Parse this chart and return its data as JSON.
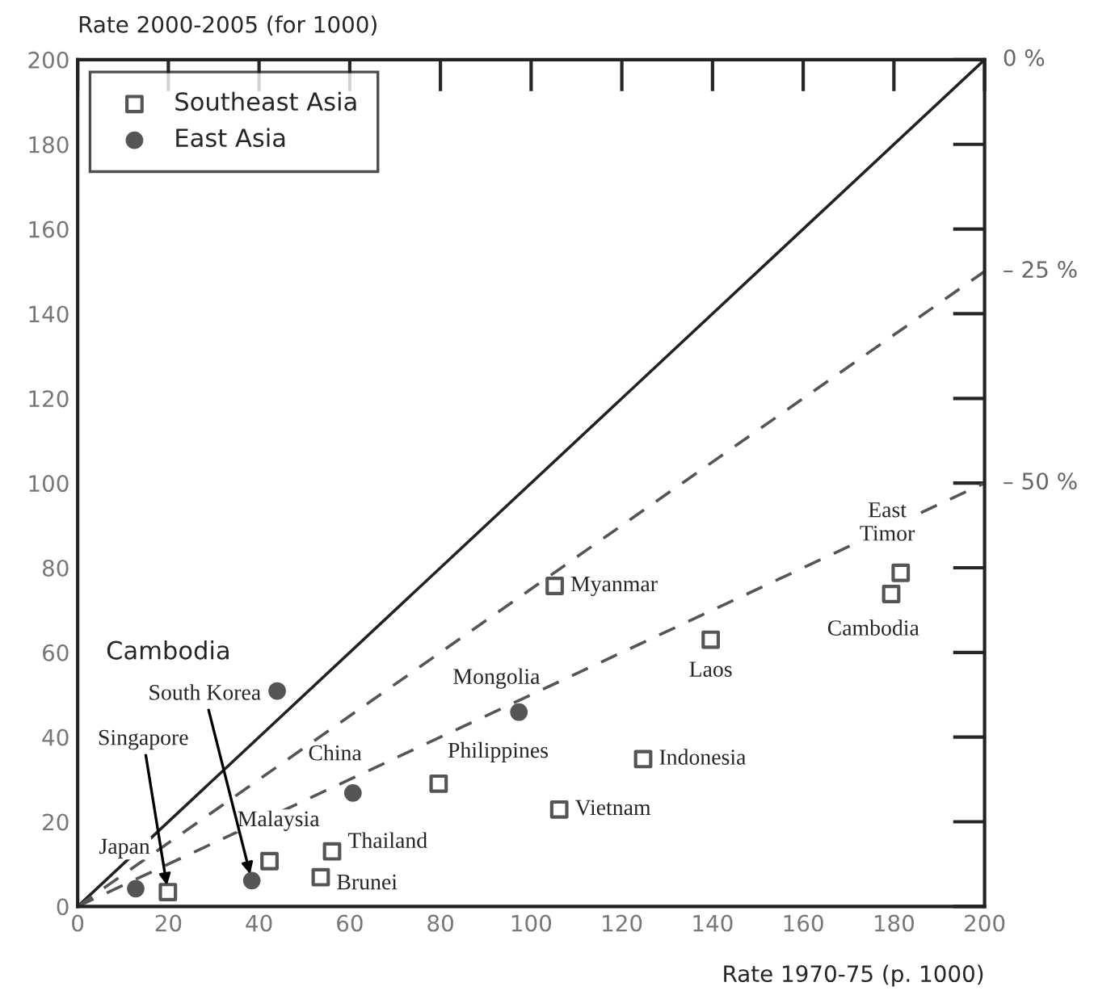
{
  "chart_data": {
    "type": "scatter",
    "xlabel": "Rate 1970-75 (p. 1000)",
    "ylabel": "Rate 2000-2005 (for 1000)",
    "xlim": [
      0,
      200
    ],
    "ylim": [
      0,
      200
    ],
    "xticks": [
      0,
      20,
      40,
      60,
      80,
      100,
      120,
      140,
      160,
      180,
      200
    ],
    "yticks": [
      0,
      20,
      40,
      60,
      80,
      100,
      120,
      140,
      160,
      180,
      200
    ],
    "grid": false,
    "legend": "top left",
    "annotations": [
      "Cambodia",
      "0 %",
      "– 25 %",
      "– 50 %"
    ],
    "series": [
      {
        "name": "Southeast Asia",
        "marker": "square",
        "color": "#555555",
        "x": [
          19.9,
          42.3,
          56.1,
          53.6,
          79.6,
          105.2,
          139.6,
          124.7,
          106.2,
          181.5,
          179.4
        ],
        "values": [
          3.4,
          10.7,
          13,
          6.9,
          29,
          75.7,
          63,
          34.8,
          22.9,
          78.8,
          73.8
        ],
        "value_labels": [
          "Singapore",
          "Malaysia",
          "Thailand",
          "Brunei",
          "Philippines",
          "Myanmar",
          "Laos",
          "Indonesia",
          "Vietnam",
          "East\nTimor",
          "Cambodia"
        ]
      },
      {
        "name": "East Asia",
        "marker": "circle",
        "color": "#555555",
        "x": [
          12.8,
          44,
          38.4,
          60.7,
          97.3
        ],
        "values": [
          4.2,
          50.9,
          6.1,
          26.8,
          45.9
        ],
        "value_labels": [
          "Japan",
          null,
          "South Korea",
          "China",
          "Mongolia"
        ]
      },
      {
        "type": "line",
        "line_style": "solid",
        "color": "#222222",
        "x": [
          0,
          200
        ],
        "values": [
          0,
          200
        ]
      },
      {
        "type": "line",
        "line_style": "dashed",
        "color": "#555555",
        "x": [
          0,
          200
        ],
        "values": [
          0,
          150
        ]
      },
      {
        "type": "line",
        "line_style": "dashed",
        "color": "#555555",
        "x": [
          0,
          200
        ],
        "values": [
          0,
          100
        ]
      }
    ]
  }
}
